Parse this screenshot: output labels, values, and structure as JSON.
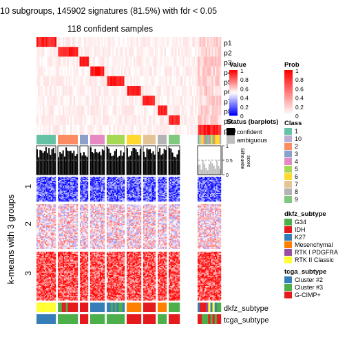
{
  "header": {
    "title": "10 subgroups, 145902 signatures (81.5%) with fdr < 0.05",
    "subtitle": "118 confident samples"
  },
  "chart_data": {
    "type": "heatmap",
    "ylabel": "k-means with 3 groups",
    "row_groups": [
      "1",
      "2",
      "3"
    ],
    "prob_rows": [
      "p1",
      "p2",
      "p3",
      "p4",
      "p5",
      "p6",
      "p7",
      "p8",
      "p9",
      "p10"
    ],
    "class_track": {
      "name": "Class",
      "segments": [
        {
          "class": "1",
          "color": "#66C2A5"
        },
        {
          "class": "2",
          "color": "#FC8D62"
        },
        {
          "class": "3",
          "color": "#8DA0CB"
        },
        {
          "class": "4",
          "color": "#E78AC3"
        },
        {
          "class": "5",
          "color": "#A6D854"
        },
        {
          "class": "6",
          "color": "#FFD92F"
        },
        {
          "class": "7",
          "color": "#E5C494"
        },
        {
          "class": "8",
          "color": "#B3B3B3"
        },
        {
          "class": "9",
          "color": "#7FC97F"
        },
        {
          "class": "10",
          "color": "#BEAED4"
        }
      ]
    },
    "silhouette_label": "Silhouette\nscore",
    "silhouette_ticks": [
      "0",
      "0.5",
      "1"
    ],
    "bottom_tracks": [
      "dkfz_subtype",
      "tcga_subtype"
    ],
    "legends": {
      "prob": {
        "title": "Prob",
        "ticks": [
          "1",
          "0.8",
          "0.6",
          "0.4",
          "0.2",
          "0"
        ]
      },
      "value": {
        "title": "Value",
        "ticks": [
          "1",
          "0.8",
          "0.6",
          "0.4",
          "0.2",
          "0"
        ]
      },
      "status": {
        "title": "Status (barplots)",
        "items": [
          {
            "label": "confident",
            "color": "#000000"
          },
          {
            "label": "ambiguous",
            "color": "#BEBEBE"
          }
        ]
      },
      "class": {
        "title": "Class",
        "items": [
          {
            "label": "1",
            "color": "#66C2A5"
          },
          {
            "label": "10",
            "color": "#BEAED4"
          },
          {
            "label": "2",
            "color": "#FC8D62"
          },
          {
            "label": "3",
            "color": "#8DA0CB"
          },
          {
            "label": "4",
            "color": "#E78AC3"
          },
          {
            "label": "5",
            "color": "#A6D854"
          },
          {
            "label": "6",
            "color": "#FFD92F"
          },
          {
            "label": "7",
            "color": "#E5C494"
          },
          {
            "label": "8",
            "color": "#B3B3B3"
          },
          {
            "label": "9",
            "color": "#7FC97F"
          }
        ]
      },
      "dkfz": {
        "title": "dkfz_subtype",
        "items": [
          {
            "label": "G34",
            "color": "#4DAF4A"
          },
          {
            "label": "IDH",
            "color": "#E41A1C"
          },
          {
            "label": "K27",
            "color": "#377EB8"
          },
          {
            "label": "Mesenchymal",
            "color": "#FF7F00"
          },
          {
            "label": "RTK I PDGFRA",
            "color": "#984EA3"
          },
          {
            "label": "RTK II Classic",
            "color": "#FFFF33"
          }
        ]
      },
      "tcga": {
        "title": "tcga_subtype",
        "items": [
          {
            "label": "Cluster #2",
            "color": "#377EB8"
          },
          {
            "label": "Cluster #3",
            "color": "#4DAF4A"
          },
          {
            "label": "G-CIMP+",
            "color": "#E41A1C"
          }
        ]
      }
    }
  }
}
